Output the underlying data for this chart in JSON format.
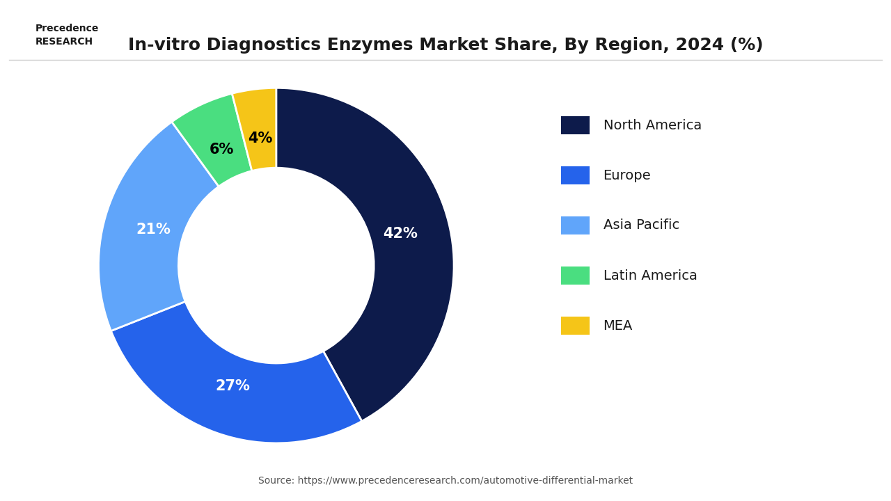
{
  "title": "In-vitro Diagnostics Enzymes Market Share, By Region, 2024 (%)",
  "source_text": "Source: https://www.precedenceresearch.com/automotive-differential-market",
  "labels": [
    "North America",
    "Europe",
    "Asia Pacific",
    "Latin America",
    "MEA"
  ],
  "values": [
    42,
    27,
    21,
    6,
    4
  ],
  "colors": [
    "#0d1b4b",
    "#2563eb",
    "#60a5fa",
    "#4ade80",
    "#f5c518"
  ],
  "pct_labels": [
    "42%",
    "27%",
    "21%",
    "6%",
    "4%"
  ],
  "legend_colors": [
    "#0d1b4b",
    "#2563eb",
    "#60a5fa",
    "#4ade80",
    "#f5c518"
  ],
  "background_color": "#ffffff",
  "title_fontsize": 18,
  "label_fontsize": 14,
  "legend_fontsize": 14
}
